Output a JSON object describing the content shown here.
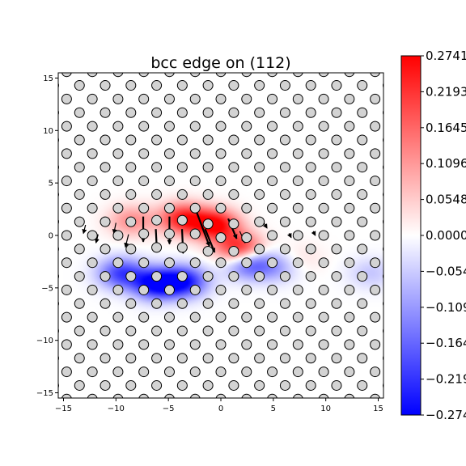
{
  "chart_data": {
    "type": "heatmap",
    "title": "bcc edge on (112)",
    "xlabel": "",
    "ylabel": "",
    "xlim": [
      -15.5,
      15.5
    ],
    "ylim": [
      -15.5,
      15.5
    ],
    "xticks": [
      -15,
      -10,
      -5,
      0,
      5,
      10,
      15
    ],
    "yticks": [
      -15,
      -10,
      -5,
      0,
      5,
      10,
      15
    ],
    "grid": false,
    "colormap": "bwr",
    "colorbar": {
      "range": [
        -0.2741,
        0.2741
      ],
      "tick_labels": [
        "0.2741",
        "0.2193",
        "0.1645",
        "0.1096",
        "0.0548",
        "0.0000",
        "-0.0548",
        "-0.1096",
        "-0.1645",
        "-0.2193",
        "-0.2741"
      ],
      "colors": {
        "low": "#0000ff",
        "mid": "#ffffff",
        "high": "#ff0000"
      }
    },
    "atoms": {
      "lattice_ax": 2.45,
      "lattice_ay": 1.3,
      "row_offset": 1.225,
      "marker": "circle",
      "fill": "#d3d3d3",
      "edge": "#000000"
    },
    "field_peaks": [
      {
        "x": -3.6,
        "y": 1.6,
        "amp": 0.24
      },
      {
        "x": -0.5,
        "y": 1.0,
        "amp": 0.27
      },
      {
        "x": 1.8,
        "y": -1.3,
        "amp": 0.26
      },
      {
        "x": -8.5,
        "y": 1.4,
        "amp": 0.12
      },
      {
        "x": -6.2,
        "y": -4.6,
        "amp": -0.27
      },
      {
        "x": -3.5,
        "y": -4.4,
        "amp": -0.24
      },
      {
        "x": -9.5,
        "y": -3.6,
        "amp": -0.2
      },
      {
        "x": 2.6,
        "y": -2.6,
        "amp": -0.2
      },
      {
        "x": 5.3,
        "y": -3.0,
        "amp": -0.09
      },
      {
        "x": 7.5,
        "y": -2.2,
        "amp": 0.035
      },
      {
        "x": 14.3,
        "y": -3.6,
        "amp": -0.06
      }
    ],
    "displacement_arrows": [
      {
        "x": -7.4,
        "y": 1.8,
        "dx": 0.0,
        "dy": -2.4
      },
      {
        "x": -6.2,
        "y": 0.6,
        "dx": 0.1,
        "dy": -2.0
      },
      {
        "x": -4.9,
        "y": 1.8,
        "dx": 0.0,
        "dy": -2.6
      },
      {
        "x": -3.7,
        "y": 0.6,
        "dx": 0.1,
        "dy": -2.3
      },
      {
        "x": -2.3,
        "y": 2.2,
        "dx": 1.2,
        "dy": -3.2
      },
      {
        "x": -1.5,
        "y": 0.6,
        "dx": 0.9,
        "dy": -2.2
      },
      {
        "x": 0.7,
        "y": 1.6,
        "dx": 0.8,
        "dy": -1.9
      },
      {
        "x": 1.8,
        "y": 0.4,
        "dx": 0.5,
        "dy": -1.1
      },
      {
        "x": -10.0,
        "y": 1.2,
        "dx": -0.2,
        "dy": -1.0
      },
      {
        "x": -8.8,
        "y": 0.1,
        "dx": -0.3,
        "dy": -1.2
      },
      {
        "x": -12.9,
        "y": 1.0,
        "dx": -0.2,
        "dy": -0.8
      },
      {
        "x": -11.7,
        "y": 0.1,
        "dx": -0.2,
        "dy": -0.8
      },
      {
        "x": 4.1,
        "y": 1.2,
        "dx": 0.3,
        "dy": -0.5
      },
      {
        "x": 6.5,
        "y": 0.2,
        "dx": 0.2,
        "dy": -0.4
      },
      {
        "x": 8.8,
        "y": 0.4,
        "dx": 0.2,
        "dy": -0.4
      }
    ]
  }
}
